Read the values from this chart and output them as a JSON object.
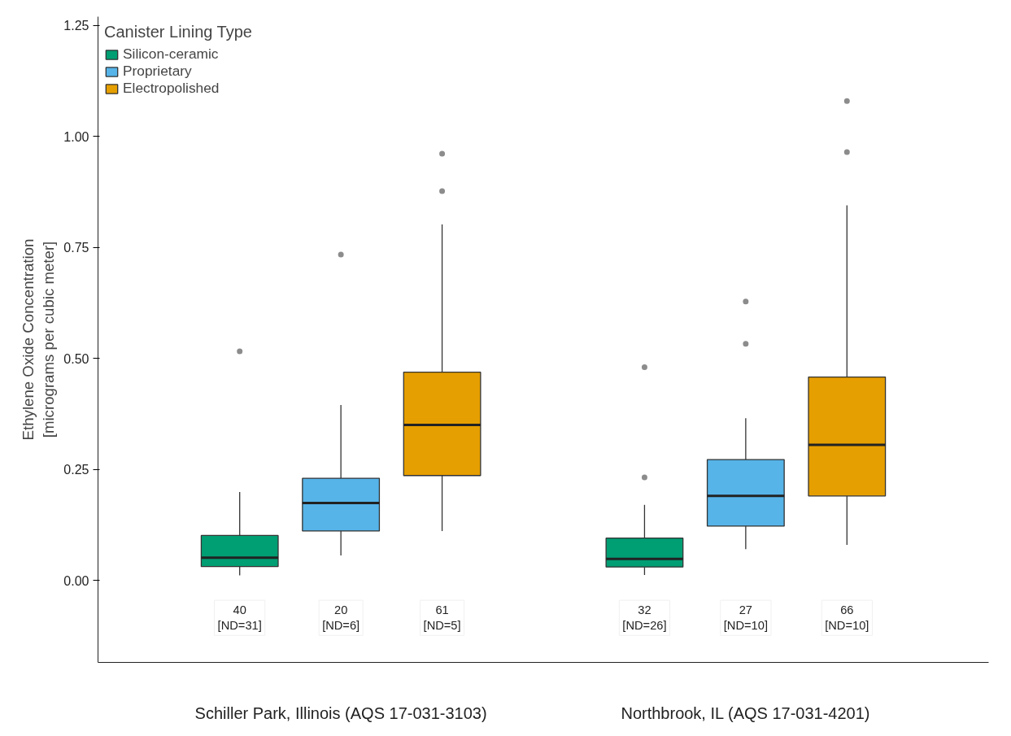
{
  "chart_data": {
    "type": "box",
    "xlabel": null,
    "ylabel": "Ethylene Oxide Concentration\n[micrograms per cubic meter]",
    "legend_title": "Canister Lining Type",
    "categories": [
      "Schiller Park, Illinois (AQS 17-031-3103)",
      "Northbrook, IL (AQS 17-031-4201)"
    ],
    "series": [
      {
        "name": "Silicon-ceramic",
        "color": "#009e73",
        "boxes": [
          {
            "low": 0.011,
            "q1": 0.031,
            "median": 0.051,
            "q3": 0.101,
            "high": 0.199,
            "outliers": [
              0.516
            ]
          },
          {
            "low": 0.012,
            "q1": 0.03,
            "median": 0.048,
            "q3": 0.095,
            "high": 0.17,
            "outliers": [
              0.48,
              0.232
            ]
          }
        ]
      },
      {
        "name": "Proprietary",
        "color": "#56b4e9",
        "boxes": [
          {
            "low": 0.056,
            "q1": 0.111,
            "median": 0.174,
            "q3": 0.23,
            "high": 0.395,
            "outliers": [
              0.734
            ]
          },
          {
            "low": 0.07,
            "q1": 0.122,
            "median": 0.19,
            "q3": 0.272,
            "high": 0.365,
            "outliers": [
              0.628,
              0.533
            ]
          }
        ]
      },
      {
        "name": "Electropolished",
        "color": "#e69f00",
        "boxes": [
          {
            "low": 0.111,
            "q1": 0.236,
            "median": 0.35,
            "q3": 0.469,
            "high": 0.802,
            "outliers": [
              0.961,
              0.877
            ]
          },
          {
            "low": 0.08,
            "q1": 0.19,
            "median": 0.305,
            "q3": 0.458,
            "high": 0.845,
            "outliers": [
              1.08,
              0.965
            ]
          }
        ]
      }
    ],
    "annotations": [
      "40\n[ND=31]",
      "20\n[ND=6]",
      "61\n[ND=5]",
      "32\n[ND=26]",
      "27\n[ND=10]",
      "66\n[ND=10]"
    ],
    "ylim": [
      -0.185,
      1.27
    ],
    "yticks": [
      {
        "value": 0,
        "label": "0.00"
      },
      {
        "value": 0.25,
        "label": "0.25"
      },
      {
        "value": 0.5,
        "label": "0.50"
      },
      {
        "value": 0.75,
        "label": "0.75"
      },
      {
        "value": 1.0,
        "label": "1.00"
      },
      {
        "value": 1.25,
        "label": "1.25"
      }
    ],
    "grid": false,
    "legend": "top left"
  }
}
